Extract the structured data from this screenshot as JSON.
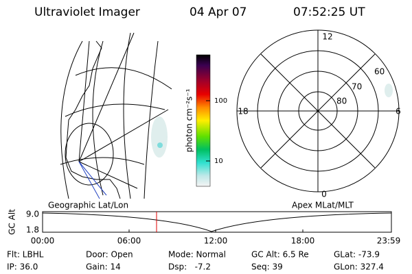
{
  "header": {
    "title": "Ultraviolet Imager",
    "date": "04 Apr 07",
    "time": "07:52:25 UT"
  },
  "colorbar": {
    "label": "photon cm⁻²s⁻¹",
    "ticks": [
      "100",
      "10"
    ]
  },
  "polar": {
    "mlt_labels": [
      "12",
      "18",
      "6",
      "0"
    ],
    "lat_labels": [
      "60",
      "70",
      "80"
    ]
  },
  "panels": {
    "left_caption": "Geographic Lat/Lon",
    "right_caption": "Apex MLat/MLT"
  },
  "altitude": {
    "y_label": "GC Alt",
    "y_ticks": [
      "9.0",
      "1.8"
    ],
    "x_ticks": [
      "00:00",
      "06:00",
      "12:00",
      "18:00",
      "23:59"
    ]
  },
  "footer": [
    [
      "Flt: LBHL",
      "IP: 36.0"
    ],
    [
      "Door: Open",
      "Gain: 14"
    ],
    [
      "Mode: Normal",
      "Dsp:   -7.2"
    ],
    [
      "GC Alt: 6.5 Re",
      "Seq: 39"
    ],
    [
      "GLat: -73.9",
      "GLon: 327.4"
    ]
  ]
}
